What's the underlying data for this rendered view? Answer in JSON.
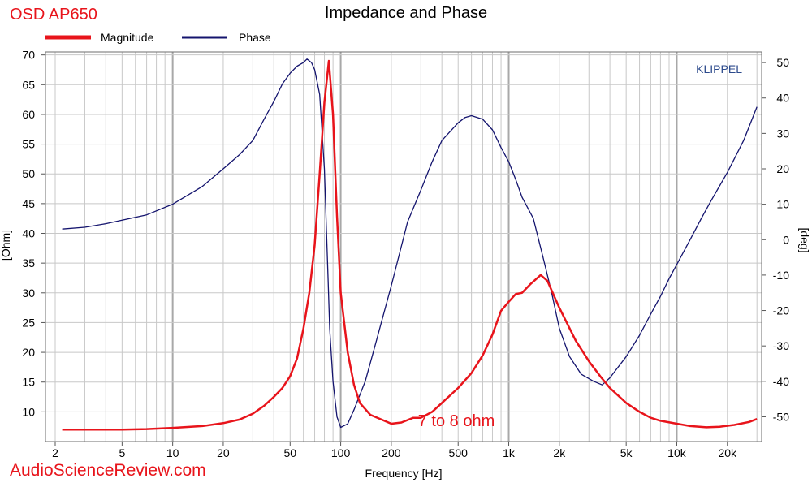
{
  "colors": {
    "magnitude": "#e8141b",
    "phase": "#14146e",
    "branding_red": "#e8141b",
    "klippel": "#2c4a8c",
    "grid": "#c8c8c8",
    "grid_major": "#a8a8a8"
  },
  "chart_data": {
    "type": "line",
    "title": "Impedance and Phase",
    "product_label": "OSD AP650",
    "watermark": "KLIPPEL",
    "site_label": "AudioScienceReview.com",
    "annotation": "7 to 8 ohm",
    "xlabel": "Frequency [Hz]",
    "ylabel_left": "[Ohm]",
    "ylabel_right": "[deg]",
    "x_scale": "log",
    "xlim": [
      1.75,
      32000
    ],
    "ylim_left": [
      5,
      70.5
    ],
    "ylim_right": [
      -57,
      53
    ],
    "grid": true,
    "legend_position": "top-left",
    "x_ticks": [
      {
        "v": 2,
        "label": "2"
      },
      {
        "v": 5,
        "label": "5"
      },
      {
        "v": 10,
        "label": "10"
      },
      {
        "v": 20,
        "label": "20"
      },
      {
        "v": 50,
        "label": "50"
      },
      {
        "v": 100,
        "label": "100"
      },
      {
        "v": 200,
        "label": "200"
      },
      {
        "v": 500,
        "label": "500"
      },
      {
        "v": 1000,
        "label": "1k"
      },
      {
        "v": 2000,
        "label": "2k"
      },
      {
        "v": 5000,
        "label": "5k"
      },
      {
        "v": 10000,
        "label": "10k"
      },
      {
        "v": 20000,
        "label": "20k"
      }
    ],
    "y_left_ticks": [
      10,
      15,
      20,
      25,
      30,
      35,
      40,
      45,
      50,
      55,
      60,
      65,
      70
    ],
    "y_right_ticks": [
      -50,
      -40,
      -30,
      -20,
      -10,
      0,
      10,
      20,
      30,
      40,
      50
    ],
    "series": [
      {
        "name": "Magnitude",
        "axis": "left",
        "points": [
          [
            2.2,
            7.0
          ],
          [
            3,
            7.0
          ],
          [
            5,
            7.0
          ],
          [
            7,
            7.1
          ],
          [
            10,
            7.3
          ],
          [
            15,
            7.6
          ],
          [
            20,
            8.1
          ],
          [
            25,
            8.7
          ],
          [
            30,
            9.7
          ],
          [
            35,
            11.0
          ],
          [
            40,
            12.5
          ],
          [
            45,
            14.0
          ],
          [
            50,
            16.0
          ],
          [
            55,
            19.0
          ],
          [
            60,
            24.0
          ],
          [
            65,
            30.0
          ],
          [
            70,
            38.0
          ],
          [
            75,
            50.0
          ],
          [
            80,
            62.0
          ],
          [
            85,
            69.0
          ],
          [
            90,
            60.0
          ],
          [
            95,
            43.0
          ],
          [
            100,
            30.0
          ],
          [
            110,
            20.0
          ],
          [
            120,
            14.5
          ],
          [
            130,
            11.5
          ],
          [
            150,
            9.5
          ],
          [
            200,
            8.0
          ],
          [
            230,
            8.2
          ],
          [
            270,
            9.0
          ],
          [
            300,
            9.0
          ],
          [
            350,
            10.0
          ],
          [
            400,
            11.5
          ],
          [
            500,
            14.0
          ],
          [
            600,
            16.5
          ],
          [
            700,
            19.5
          ],
          [
            800,
            23.0
          ],
          [
            900,
            27.0
          ],
          [
            1000,
            28.5
          ],
          [
            1100,
            29.8
          ],
          [
            1200,
            30.0
          ],
          [
            1350,
            31.5
          ],
          [
            1550,
            33.0
          ],
          [
            1700,
            32.0
          ],
          [
            2000,
            27.5
          ],
          [
            2500,
            22.0
          ],
          [
            3000,
            18.5
          ],
          [
            3500,
            16.0
          ],
          [
            4000,
            14.0
          ],
          [
            5000,
            11.5
          ],
          [
            6000,
            10.0
          ],
          [
            7000,
            9.0
          ],
          [
            8000,
            8.5
          ],
          [
            10000,
            8.0
          ],
          [
            12000,
            7.6
          ],
          [
            15000,
            7.4
          ],
          [
            18000,
            7.5
          ],
          [
            22000,
            7.8
          ],
          [
            27000,
            8.3
          ],
          [
            30000,
            8.8
          ]
        ]
      },
      {
        "name": "Phase",
        "axis": "right",
        "points": [
          [
            2.2,
            3.0
          ],
          [
            3,
            3.5
          ],
          [
            4,
            4.5
          ],
          [
            5,
            5.5
          ],
          [
            7,
            7.0
          ],
          [
            10,
            10.0
          ],
          [
            15,
            15.0
          ],
          [
            20,
            20.0
          ],
          [
            25,
            24.0
          ],
          [
            30,
            28.0
          ],
          [
            35,
            34.0
          ],
          [
            40,
            39.0
          ],
          [
            45,
            44.0
          ],
          [
            50,
            47.0
          ],
          [
            55,
            49.0
          ],
          [
            60,
            50.0
          ],
          [
            63,
            51.0
          ],
          [
            67,
            50.0
          ],
          [
            70,
            48.0
          ],
          [
            75,
            41.0
          ],
          [
            80,
            20.0
          ],
          [
            84,
            -10.0
          ],
          [
            86,
            -25.0
          ],
          [
            90,
            -40.0
          ],
          [
            95,
            -50.0
          ],
          [
            100,
            -53.0
          ],
          [
            110,
            -52.0
          ],
          [
            120,
            -48.0
          ],
          [
            140,
            -40.0
          ],
          [
            160,
            -30.0
          ],
          [
            200,
            -13.0
          ],
          [
            250,
            5.0
          ],
          [
            300,
            14.0
          ],
          [
            350,
            22.0
          ],
          [
            400,
            28.0
          ],
          [
            500,
            33.0
          ],
          [
            550,
            34.5
          ],
          [
            600,
            35.0
          ],
          [
            700,
            34.0
          ],
          [
            800,
            31.0
          ],
          [
            900,
            26.0
          ],
          [
            1000,
            22.0
          ],
          [
            1100,
            17.0
          ],
          [
            1200,
            12.0
          ],
          [
            1400,
            6.0
          ],
          [
            1600,
            -5.0
          ],
          [
            1800,
            -15.0
          ],
          [
            2000,
            -25.0
          ],
          [
            2300,
            -33.0
          ],
          [
            2700,
            -38.0
          ],
          [
            3200,
            -40.0
          ],
          [
            3600,
            -41.0
          ],
          [
            4000,
            -39.0
          ],
          [
            5000,
            -33.0
          ],
          [
            6000,
            -27.0
          ],
          [
            7000,
            -21.0
          ],
          [
            8000,
            -16.0
          ],
          [
            9000,
            -11.0
          ],
          [
            10000,
            -7.0
          ],
          [
            12000,
            0.0
          ],
          [
            14000,
            6.0
          ],
          [
            16000,
            11.0
          ],
          [
            20000,
            19.0
          ],
          [
            25000,
            28.0
          ],
          [
            30000,
            37.5
          ]
        ]
      }
    ]
  }
}
